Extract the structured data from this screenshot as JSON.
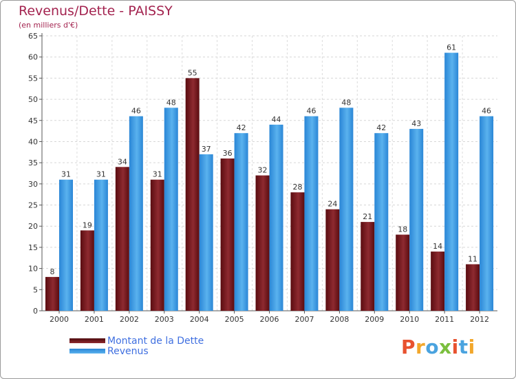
{
  "title": "Revenus/Dette - PAISSY",
  "subtitle": "(en milliers d'€)",
  "chart_data": {
    "type": "bar",
    "categories": [
      "2000",
      "2001",
      "2002",
      "2003",
      "2004",
      "2005",
      "2006",
      "2007",
      "2008",
      "2009",
      "2010",
      "2011",
      "2012"
    ],
    "series": [
      {
        "name": "Montant de la Dette",
        "color": "#7a1a1e",
        "values": [
          8,
          19,
          34,
          31,
          55,
          36,
          32,
          28,
          24,
          21,
          18,
          14,
          11
        ]
      },
      {
        "name": "Revenus",
        "color": "#3f9de6",
        "values": [
          31,
          31,
          46,
          48,
          37,
          42,
          44,
          46,
          48,
          42,
          43,
          61,
          46
        ]
      }
    ],
    "ylim": [
      0,
      65
    ],
    "yticks": [
      0,
      5,
      10,
      15,
      20,
      25,
      30,
      35,
      40,
      45,
      50,
      55,
      60,
      65
    ],
    "grid": true,
    "legend": "bottom-left"
  },
  "logo": {
    "text": "Proxiti",
    "colors": [
      "#e8522f",
      "#f2a72b",
      "#4aa3df",
      "#7bbf3e",
      "#e8522f",
      "#4aa3df",
      "#f2a72b"
    ]
  }
}
